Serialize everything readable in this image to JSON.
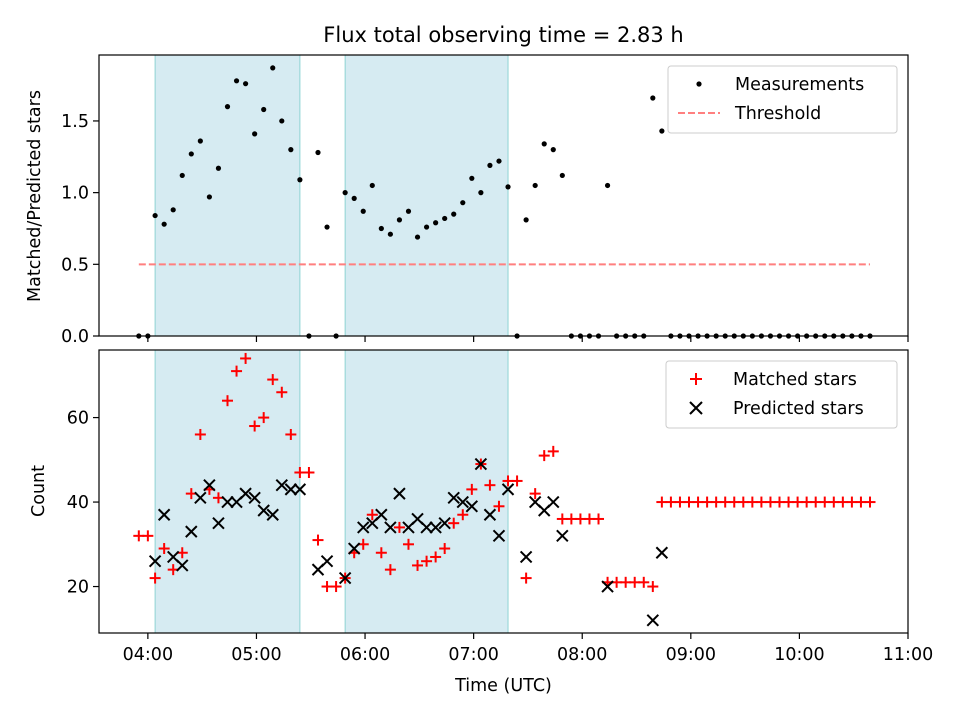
{
  "chart_data": {
    "title": "Flux total observing time = 2.83 h",
    "xlabel": "Time (UTC)",
    "x_ticks": [
      "04:00",
      "05:00",
      "06:00",
      "07:00",
      "08:00",
      "09:00",
      "10:00",
      "11:00"
    ],
    "x_range_hours": [
      3.55,
      11.0
    ],
    "shaded_intervals": [
      [
        "04:04",
        "05:24"
      ],
      [
        "05:49",
        "07:19"
      ]
    ],
    "shade_color": "#add8e6",
    "panels": [
      {
        "type": "scatter",
        "ylabel": "Matched/Predicted stars",
        "ylim": [
          0,
          1.96
        ],
        "y_ticks": [
          "0.0",
          "0.5",
          "1.0",
          "1.5"
        ],
        "y_tick_values": [
          0.0,
          0.5,
          1.0,
          1.5
        ],
        "legend": [
          "Measurements",
          "Threshold"
        ],
        "legend_position": "top-right",
        "series": [
          {
            "name": "Measurements",
            "marker": "dot",
            "color": "#000000",
            "points": [
              [
                "03:55",
                0.0
              ],
              [
                "04:00",
                0.0
              ],
              [
                "04:04",
                0.84
              ],
              [
                "04:09",
                0.78
              ],
              [
                "04:14",
                0.88
              ],
              [
                "04:19",
                1.12
              ],
              [
                "04:24",
                1.27
              ],
              [
                "04:29",
                1.36
              ],
              [
                "04:34",
                0.97
              ],
              [
                "04:39",
                1.17
              ],
              [
                "04:44",
                1.6
              ],
              [
                "04:49",
                1.78
              ],
              [
                "04:54",
                1.76
              ],
              [
                "04:59",
                1.41
              ],
              [
                "05:04",
                1.58
              ],
              [
                "05:09",
                1.87
              ],
              [
                "05:14",
                1.5
              ],
              [
                "05:19",
                1.3
              ],
              [
                "05:24",
                1.09
              ],
              [
                "05:29",
                0.0
              ],
              [
                "05:34",
                1.28
              ],
              [
                "05:39",
                0.76
              ],
              [
                "05:44",
                0.0
              ],
              [
                "05:49",
                1.0
              ],
              [
                "05:54",
                0.96
              ],
              [
                "05:59",
                0.87
              ],
              [
                "06:04",
                1.05
              ],
              [
                "06:09",
                0.75
              ],
              [
                "06:14",
                0.71
              ],
              [
                "06:19",
                0.81
              ],
              [
                "06:24",
                0.87
              ],
              [
                "06:29",
                0.69
              ],
              [
                "06:34",
                0.76
              ],
              [
                "06:39",
                0.79
              ],
              [
                "06:44",
                0.82
              ],
              [
                "06:49",
                0.85
              ],
              [
                "06:54",
                0.93
              ],
              [
                "06:59",
                1.1
              ],
              [
                "07:04",
                1.0
              ],
              [
                "07:09",
                1.19
              ],
              [
                "07:14",
                1.22
              ],
              [
                "07:19",
                1.04
              ],
              [
                "07:24",
                0.0
              ],
              [
                "07:29",
                0.81
              ],
              [
                "07:34",
                1.05
              ],
              [
                "07:39",
                1.34
              ],
              [
                "07:44",
                1.3
              ],
              [
                "07:49",
                1.12
              ],
              [
                "07:54",
                0.0
              ],
              [
                "07:59",
                0.0
              ],
              [
                "08:04",
                0.0
              ],
              [
                "08:09",
                0.0
              ],
              [
                "08:14",
                1.05
              ],
              [
                "08:19",
                0.0
              ],
              [
                "08:24",
                0.0
              ],
              [
                "08:29",
                0.0
              ],
              [
                "08:34",
                0.0
              ],
              [
                "08:39",
                1.66
              ],
              [
                "08:44",
                1.43
              ],
              [
                "08:49",
                0.0
              ],
              [
                "08:54",
                0.0
              ],
              [
                "08:59",
                0.0
              ],
              [
                "09:04",
                0.0
              ],
              [
                "09:09",
                0.0
              ],
              [
                "09:14",
                0.0
              ],
              [
                "09:19",
                0.0
              ],
              [
                "09:24",
                0.0
              ],
              [
                "09:29",
                0.0
              ],
              [
                "09:34",
                0.0
              ],
              [
                "09:39",
                0.0
              ],
              [
                "09:44",
                0.0
              ],
              [
                "09:49",
                0.0
              ],
              [
                "09:54",
                0.0
              ],
              [
                "09:59",
                0.0
              ],
              [
                "10:04",
                0.0
              ],
              [
                "10:09",
                0.0
              ],
              [
                "10:14",
                0.0
              ],
              [
                "10:19",
                0.0
              ],
              [
                "10:24",
                0.0
              ],
              [
                "10:29",
                0.0
              ],
              [
                "10:34",
                0.0
              ],
              [
                "10:39",
                0.0
              ]
            ]
          },
          {
            "name": "Threshold",
            "marker": "dashed-line",
            "color": "#ff7f7f",
            "points": [
              [
                "03:55",
                0.5
              ],
              [
                "10:39",
                0.5
              ]
            ]
          }
        ]
      },
      {
        "type": "scatter",
        "ylabel": "Count",
        "ylim": [
          9,
          76
        ],
        "y_ticks": [
          "20",
          "40",
          "60"
        ],
        "y_tick_values": [
          20,
          40,
          60
        ],
        "legend": [
          "Matched stars",
          "Predicted stars"
        ],
        "legend_position": "top-right",
        "series": [
          {
            "name": "Matched stars",
            "marker": "plus",
            "color": "#ff0000",
            "points": [
              [
                "03:55",
                32
              ],
              [
                "04:00",
                32
              ],
              [
                "04:04",
                22
              ],
              [
                "04:09",
                29
              ],
              [
                "04:14",
                24
              ],
              [
                "04:19",
                28
              ],
              [
                "04:24",
                42
              ],
              [
                "04:29",
                56
              ],
              [
                "04:34",
                43
              ],
              [
                "04:39",
                41
              ],
              [
                "04:44",
                64
              ],
              [
                "04:49",
                71
              ],
              [
                "04:54",
                74
              ],
              [
                "04:59",
                58
              ],
              [
                "05:04",
                60
              ],
              [
                "05:09",
                69
              ],
              [
                "05:14",
                66
              ],
              [
                "05:19",
                56
              ],
              [
                "05:24",
                47
              ],
              [
                "05:29",
                47
              ],
              [
                "05:34",
                31
              ],
              [
                "05:39",
                20
              ],
              [
                "05:44",
                20
              ],
              [
                "05:49",
                22
              ],
              [
                "05:54",
                28
              ],
              [
                "05:59",
                30
              ],
              [
                "06:04",
                37
              ],
              [
                "06:09",
                28
              ],
              [
                "06:14",
                24
              ],
              [
                "06:19",
                34
              ],
              [
                "06:24",
                30
              ],
              [
                "06:29",
                25
              ],
              [
                "06:34",
                26
              ],
              [
                "06:39",
                27
              ],
              [
                "06:44",
                29
              ],
              [
                "06:49",
                35
              ],
              [
                "06:54",
                37
              ],
              [
                "06:59",
                43
              ],
              [
                "07:04",
                49
              ],
              [
                "07:09",
                44
              ],
              [
                "07:14",
                39
              ],
              [
                "07:19",
                45
              ],
              [
                "07:24",
                45
              ],
              [
                "07:29",
                22
              ],
              [
                "07:34",
                42
              ],
              [
                "07:39",
                51
              ],
              [
                "07:44",
                52
              ],
              [
                "07:49",
                36
              ],
              [
                "07:54",
                36
              ],
              [
                "07:59",
                36
              ],
              [
                "08:04",
                36
              ],
              [
                "08:09",
                36
              ],
              [
                "08:14",
                21
              ],
              [
                "08:19",
                21
              ],
              [
                "08:24",
                21
              ],
              [
                "08:29",
                21
              ],
              [
                "08:34",
                21
              ],
              [
                "08:39",
                20
              ],
              [
                "08:44",
                40
              ],
              [
                "08:49",
                40
              ],
              [
                "08:54",
                40
              ],
              [
                "08:59",
                40
              ],
              [
                "09:04",
                40
              ],
              [
                "09:09",
                40
              ],
              [
                "09:14",
                40
              ],
              [
                "09:19",
                40
              ],
              [
                "09:24",
                40
              ],
              [
                "09:29",
                40
              ],
              [
                "09:34",
                40
              ],
              [
                "09:39",
                40
              ],
              [
                "09:44",
                40
              ],
              [
                "09:49",
                40
              ],
              [
                "09:54",
                40
              ],
              [
                "09:59",
                40
              ],
              [
                "10:04",
                40
              ],
              [
                "10:09",
                40
              ],
              [
                "10:14",
                40
              ],
              [
                "10:19",
                40
              ],
              [
                "10:24",
                40
              ],
              [
                "10:29",
                40
              ],
              [
                "10:34",
                40
              ],
              [
                "10:39",
                40
              ]
            ]
          },
          {
            "name": "Predicted stars",
            "marker": "x",
            "color": "#000000",
            "points": [
              [
                "04:04",
                26
              ],
              [
                "04:09",
                37
              ],
              [
                "04:14",
                27
              ],
              [
                "04:19",
                25
              ],
              [
                "04:24",
                33
              ],
              [
                "04:29",
                41
              ],
              [
                "04:34",
                44
              ],
              [
                "04:39",
                35
              ],
              [
                "04:44",
                40
              ],
              [
                "04:49",
                40
              ],
              [
                "04:54",
                42
              ],
              [
                "04:59",
                41
              ],
              [
                "05:04",
                38
              ],
              [
                "05:09",
                37
              ],
              [
                "05:14",
                44
              ],
              [
                "05:19",
                43
              ],
              [
                "05:24",
                43
              ],
              [
                "05:34",
                24
              ],
              [
                "05:39",
                26
              ],
              [
                "05:49",
                22
              ],
              [
                "05:54",
                29
              ],
              [
                "05:59",
                34
              ],
              [
                "06:04",
                35
              ],
              [
                "06:09",
                37
              ],
              [
                "06:14",
                34
              ],
              [
                "06:19",
                42
              ],
              [
                "06:24",
                34
              ],
              [
                "06:29",
                36
              ],
              [
                "06:34",
                34
              ],
              [
                "06:39",
                34
              ],
              [
                "06:44",
                35
              ],
              [
                "06:49",
                41
              ],
              [
                "06:54",
                40
              ],
              [
                "06:59",
                39
              ],
              [
                "07:04",
                49
              ],
              [
                "07:09",
                37
              ],
              [
                "07:14",
                32
              ],
              [
                "07:19",
                43
              ],
              [
                "07:29",
                27
              ],
              [
                "07:34",
                40
              ],
              [
                "07:39",
                38
              ],
              [
                "07:44",
                40
              ],
              [
                "07:49",
                32
              ],
              [
                "08:14",
                20
              ],
              [
                "08:39",
                12
              ],
              [
                "08:44",
                28
              ]
            ]
          }
        ]
      }
    ]
  }
}
